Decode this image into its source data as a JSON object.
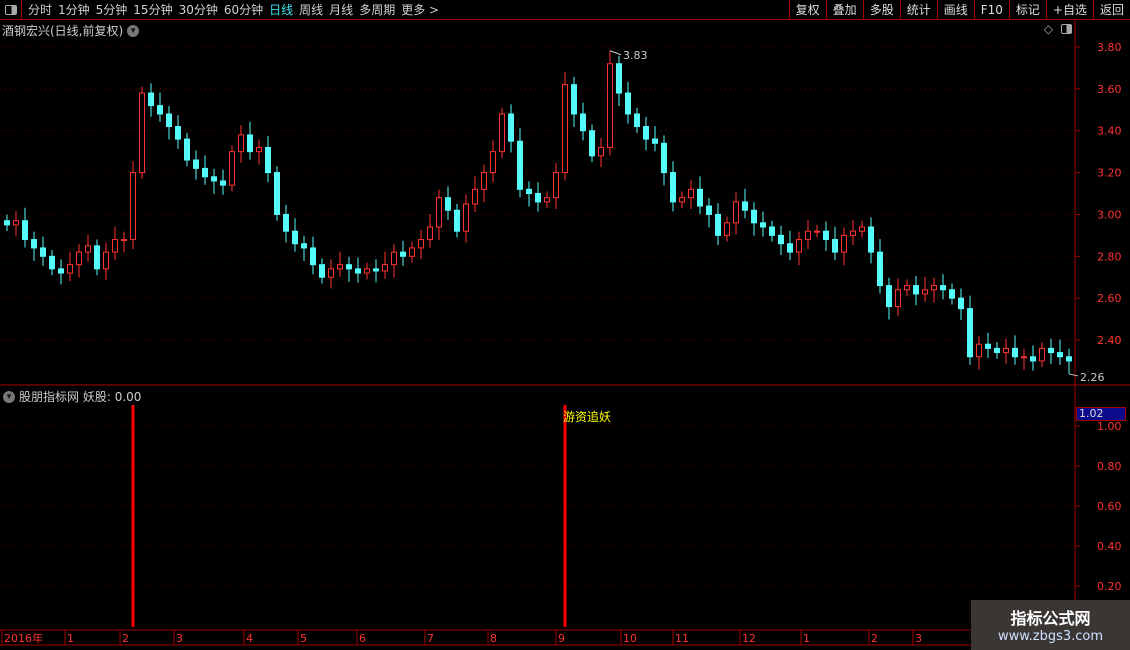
{
  "toolbar": {
    "periods": [
      "分时",
      "1分钟",
      "5分钟",
      "15分钟",
      "30分钟",
      "60分钟",
      "日线",
      "周线",
      "月线",
      "多周期",
      "更多 >"
    ],
    "active": "日线",
    "buttons": [
      "复权",
      "叠加",
      "多股",
      "统计",
      "画线",
      "F10",
      "标记",
      "+自选",
      "返回"
    ]
  },
  "main": {
    "title": "酒钢宏兴(日线,前复权)",
    "price_ticks": [
      "3.80",
      "3.60",
      "3.40",
      "3.20",
      "3.00",
      "2.80",
      "2.60",
      "2.40"
    ],
    "high_label": "3.83",
    "low_label": "2.26"
  },
  "sub": {
    "title": "股朋指标网",
    "indicator": "妖股: 0.00",
    "signal_label": "游资追妖",
    "value_box": "1.02",
    "ticks": [
      "1.00",
      "0.80",
      "0.60",
      "0.40",
      "0.20"
    ],
    "signal_candles": [
      14,
      62
    ]
  },
  "time_axis": [
    "2016年",
    "1",
    "2",
    "3",
    "4",
    "5",
    "6",
    "7",
    "8",
    "9",
    "10",
    "11",
    "12",
    "1",
    "2",
    "3"
  ],
  "watermark": {
    "line1": "指标公式网",
    "line2": "www.zbgs3.com"
  },
  "colors": {
    "up": "#ff3232",
    "down": "#54fcfc",
    "border": "#a00000",
    "signal": "#ff0000"
  },
  "closes": [
    2.95,
    2.97,
    2.88,
    2.84,
    2.8,
    2.74,
    2.72,
    2.76,
    2.82,
    2.85,
    2.74,
    2.82,
    2.88,
    2.88,
    3.2,
    3.58,
    3.52,
    3.48,
    3.42,
    3.36,
    3.26,
    3.22,
    3.18,
    3.16,
    3.14,
    3.3,
    3.38,
    3.3,
    3.32,
    3.2,
    3.0,
    2.92,
    2.86,
    2.84,
    2.76,
    2.7,
    2.74,
    2.76,
    2.74,
    2.72,
    2.74,
    2.73,
    2.76,
    2.82,
    2.8,
    2.84,
    2.88,
    2.94,
    3.08,
    3.02,
    2.92,
    3.05,
    3.12,
    3.2,
    3.3,
    3.48,
    3.35,
    3.12,
    3.1,
    3.06,
    3.08,
    3.2,
    3.62,
    3.48,
    3.4,
    3.28,
    3.32,
    3.72,
    3.58,
    3.48,
    3.42,
    3.36,
    3.34,
    3.2,
    3.06,
    3.08,
    3.12,
    3.04,
    3.0,
    2.9,
    2.96,
    3.06,
    3.02,
    2.96,
    2.94,
    2.9,
    2.86,
    2.82,
    2.88,
    2.92,
    2.92,
    2.88,
    2.82,
    2.9,
    2.92,
    2.94,
    2.82,
    2.66,
    2.56,
    2.64,
    2.66,
    2.62,
    2.64,
    2.66,
    2.64,
    2.6,
    2.55,
    2.32,
    2.38,
    2.36,
    2.34,
    2.36,
    2.32,
    2.32,
    2.3,
    2.36,
    2.34,
    2.32,
    2.3
  ]
}
